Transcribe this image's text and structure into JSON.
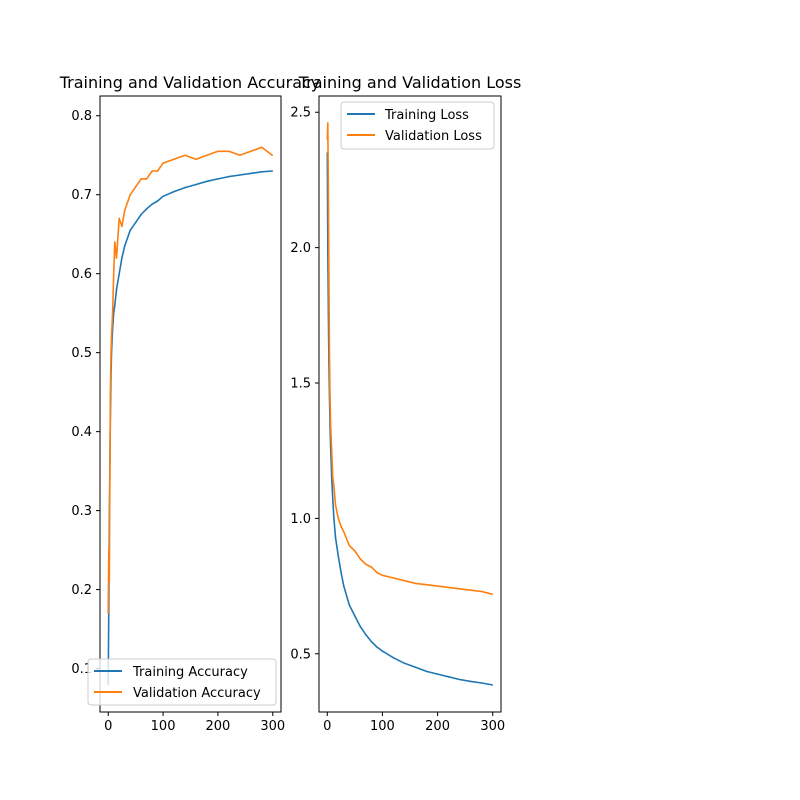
{
  "chart_data": [
    {
      "type": "line",
      "title": "Training and Validation Accuracy",
      "xlabel": "",
      "ylabel": "",
      "xlim": [
        -15,
        315
      ],
      "ylim": [
        0.045,
        0.825
      ],
      "xticks": [
        0,
        100,
        200,
        300
      ],
      "yticks": [
        0.1,
        0.2,
        0.3,
        0.4,
        0.5,
        0.6,
        0.7,
        0.8
      ],
      "ytick_labels": [
        "0.1",
        "0.2",
        "0.3",
        "0.4",
        "0.5",
        "0.6",
        "0.7",
        "0.8"
      ],
      "grid": false,
      "legend_position": "lower right",
      "series": [
        {
          "name": "Training Accuracy",
          "color": "#1f77b4",
          "x": [
            0,
            1,
            2,
            3,
            4,
            5,
            6,
            8,
            10,
            12,
            15,
            20,
            25,
            30,
            40,
            50,
            60,
            70,
            80,
            90,
            100,
            120,
            140,
            160,
            180,
            200,
            220,
            240,
            260,
            280,
            299
          ],
          "y": [
            0.08,
            0.18,
            0.28,
            0.36,
            0.42,
            0.47,
            0.5,
            0.53,
            0.55,
            0.56,
            0.58,
            0.6,
            0.62,
            0.635,
            0.655,
            0.665,
            0.675,
            0.682,
            0.688,
            0.692,
            0.698,
            0.704,
            0.709,
            0.713,
            0.717,
            0.72,
            0.723,
            0.725,
            0.727,
            0.729,
            0.73
          ]
        },
        {
          "name": "Validation Accuracy",
          "color": "#ff7f0e",
          "x": [
            0,
            1,
            2,
            3,
            4,
            5,
            6,
            8,
            10,
            12,
            15,
            20,
            25,
            30,
            40,
            50,
            60,
            70,
            80,
            90,
            100,
            120,
            140,
            160,
            180,
            200,
            220,
            240,
            260,
            280,
            299
          ],
          "y": [
            0.17,
            0.25,
            0.21,
            0.35,
            0.45,
            0.5,
            0.52,
            0.55,
            0.6,
            0.64,
            0.62,
            0.67,
            0.66,
            0.68,
            0.7,
            0.71,
            0.72,
            0.72,
            0.73,
            0.73,
            0.74,
            0.745,
            0.75,
            0.745,
            0.75,
            0.755,
            0.755,
            0.75,
            0.755,
            0.76,
            0.75
          ]
        }
      ]
    },
    {
      "type": "line",
      "title": "Training and Validation Loss",
      "xlabel": "",
      "ylabel": "",
      "xlim": [
        -15,
        315
      ],
      "ylim": [
        0.285,
        2.56
      ],
      "xticks": [
        0,
        100,
        200,
        300
      ],
      "yticks": [
        0.5,
        1.0,
        1.5,
        2.0,
        2.5
      ],
      "ytick_labels": [
        "0.5",
        "1.0",
        "1.5",
        "2.0",
        "2.5"
      ],
      "grid": false,
      "legend_position": "upper right",
      "series": [
        {
          "name": "Training Loss",
          "color": "#1f77b4",
          "x": [
            0,
            1,
            2,
            3,
            4,
            5,
            6,
            8,
            10,
            12,
            15,
            20,
            25,
            30,
            40,
            50,
            60,
            70,
            80,
            90,
            100,
            120,
            140,
            160,
            180,
            200,
            220,
            240,
            260,
            280,
            299
          ],
          "y": [
            2.35,
            2.0,
            1.75,
            1.58,
            1.45,
            1.35,
            1.27,
            1.15,
            1.07,
            1.0,
            0.93,
            0.86,
            0.8,
            0.75,
            0.68,
            0.64,
            0.6,
            0.57,
            0.545,
            0.525,
            0.51,
            0.485,
            0.465,
            0.45,
            0.435,
            0.425,
            0.415,
            0.405,
            0.398,
            0.392,
            0.385
          ]
        },
        {
          "name": "Validation Loss",
          "color": "#ff7f0e",
          "x": [
            0,
            1,
            2,
            3,
            4,
            5,
            6,
            8,
            10,
            12,
            15,
            20,
            25,
            30,
            40,
            50,
            60,
            70,
            80,
            90,
            100,
            120,
            140,
            160,
            180,
            200,
            220,
            240,
            260,
            280,
            299
          ],
          "y": [
            2.4,
            2.46,
            2.2,
            1.9,
            1.6,
            1.45,
            1.35,
            1.25,
            1.15,
            1.12,
            1.05,
            1.0,
            0.97,
            0.95,
            0.9,
            0.88,
            0.85,
            0.83,
            0.82,
            0.8,
            0.79,
            0.78,
            0.77,
            0.76,
            0.755,
            0.75,
            0.745,
            0.74,
            0.735,
            0.73,
            0.72
          ]
        }
      ]
    }
  ]
}
